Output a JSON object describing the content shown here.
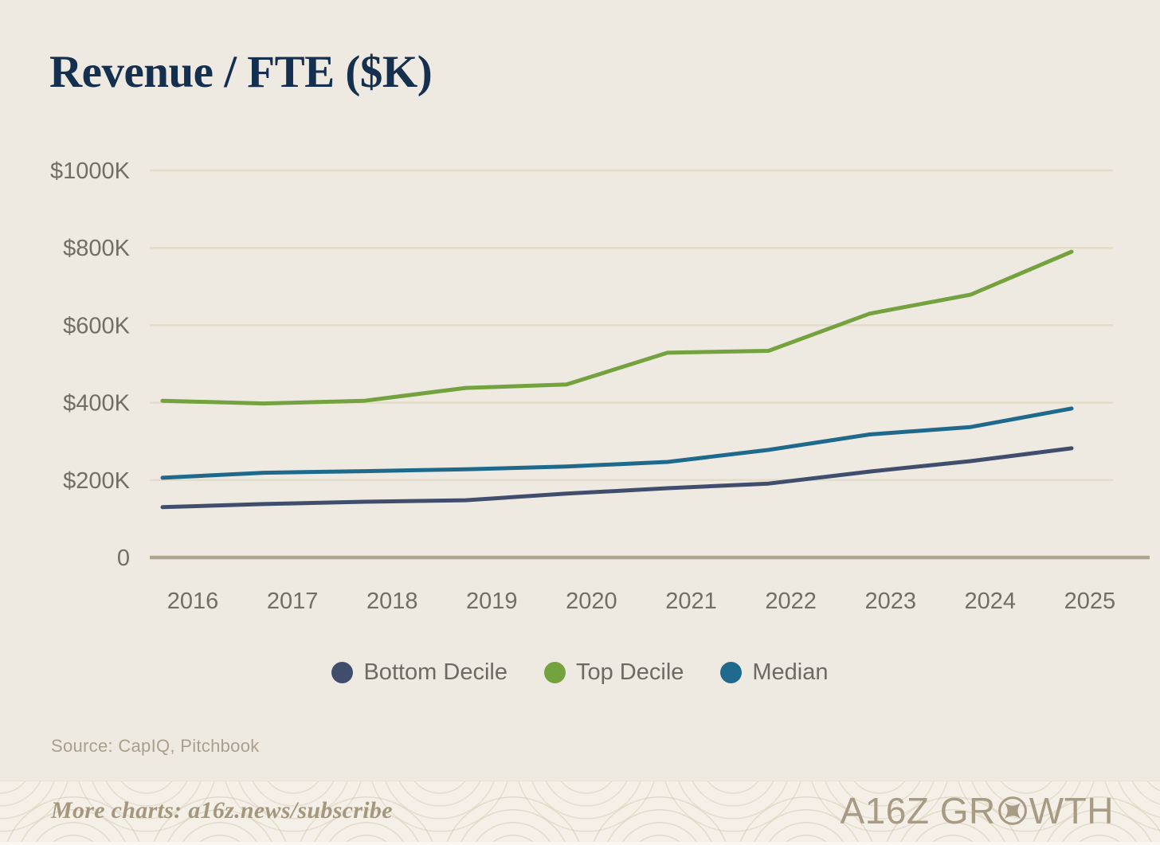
{
  "title": "Revenue / FTE ($K)",
  "source": "Source: CapIQ, Pitchbook",
  "footer": {
    "cta": "More charts: a16z.news/subscribe",
    "brand_left": "A16Z GR",
    "brand_right": "WTH",
    "brand_full": "A16Z GROWTH"
  },
  "colors": {
    "background": "#EFEAE1",
    "title": "#15304E",
    "tick_text": "#716E66",
    "gridline": "#E3DCC8",
    "axis": "#B0A48E",
    "legend_text": "#6C6A63",
    "source_text": "#A99F8C",
    "footer_bg": "#F4F0E7",
    "footer_text": "#A4977E",
    "brand": "#A89B84"
  },
  "chart_data": {
    "type": "line",
    "title": "Revenue / FTE ($K)",
    "unit": "$K",
    "x": [
      "2016",
      "2017",
      "2018",
      "2019",
      "2020",
      "2021",
      "2022",
      "2023",
      "2024",
      "2025"
    ],
    "y_ticks": [
      0,
      200,
      400,
      600,
      800,
      1000
    ],
    "y_tick_labels": [
      "0",
      "$200K",
      "$400K",
      "$600K",
      "$800K",
      "$1000K"
    ],
    "ylim": [
      0,
      1050
    ],
    "grid": "horizontal",
    "legend_position": "bottom",
    "series": [
      {
        "name": "Bottom Decile",
        "color": "#404D6C",
        "values": [
          130,
          138,
          144,
          148,
          165,
          179,
          191,
          222,
          249,
          282
        ]
      },
      {
        "name": "Top Decile",
        "color": "#74A23E",
        "values": [
          405,
          398,
          405,
          438,
          447,
          529,
          534,
          630,
          679,
          790
        ]
      },
      {
        "name": "Median",
        "color": "#1F6A8C",
        "values": [
          206,
          219,
          223,
          228,
          235,
          247,
          278,
          318,
          337,
          385
        ]
      }
    ]
  }
}
